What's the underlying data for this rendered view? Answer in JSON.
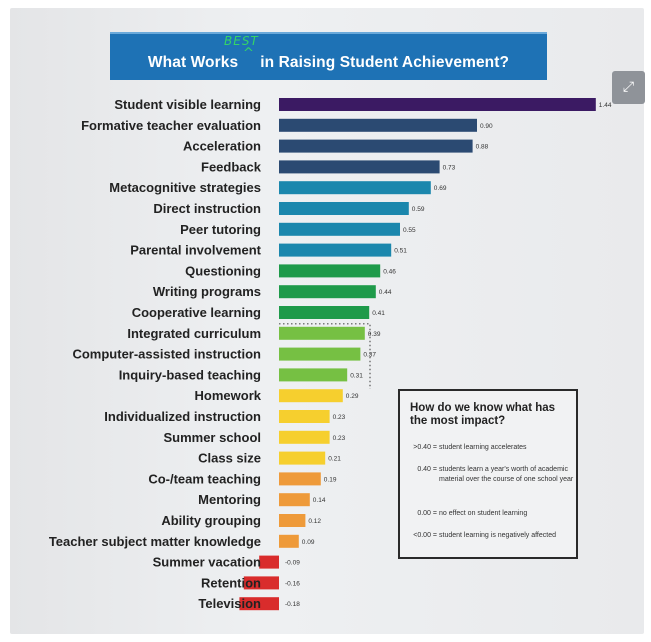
{
  "header": {
    "title": "What Works     in Raising Student Achievement?",
    "annotation": "BEST",
    "caret": "^"
  },
  "expand_icon": "⤢",
  "legend": {
    "title": "How do we know what has the most impact?",
    "rows": [
      {
        "key": ">0.40 =",
        "text": "student learning accelerates"
      },
      {
        "key": "0.40 =",
        "text": "students learn a year's worth of academic material over the course of one school year"
      },
      {
        "key": "0.00 =",
        "text": "no effect on student learning"
      },
      {
        "key": "<0.00 =",
        "text": "student learning is negatively affected"
      }
    ]
  },
  "chart_data": {
    "type": "bar",
    "orientation": "horizontal",
    "title": "What Works in Raising Student Achievement?",
    "categories": [
      "Student visible learning",
      "Formative teacher evaluation",
      "Acceleration",
      "Feedback",
      "Metacognitive strategies",
      "Direct instruction",
      "Peer tutoring",
      "Parental involvement",
      "Questioning",
      "Writing programs",
      "Cooperative learning",
      "Integrated curriculum",
      "Computer-assisted instruction",
      "Inquiry-based teaching",
      "Homework",
      "Individualized instruction",
      "Summer school",
      "Class size",
      "Co-/team teaching",
      "Mentoring",
      "Ability grouping",
      "Teacher subject matter knowledge",
      "Summer vacation",
      "Retention",
      "Television"
    ],
    "values": [
      1.44,
      0.9,
      0.88,
      0.73,
      0.69,
      0.59,
      0.55,
      0.51,
      0.46,
      0.44,
      0.41,
      0.39,
      0.37,
      0.31,
      0.29,
      0.23,
      0.23,
      0.21,
      0.19,
      0.14,
      0.12,
      0.09,
      -0.09,
      -0.16,
      -0.18
    ],
    "value_labels": [
      "1.44",
      "0.90",
      "0.88",
      "0.73",
      "0.69",
      "0.59",
      "0.55",
      "0.51",
      "0.46",
      "0.44",
      "0.41",
      "0.39",
      "0.37",
      "0.31",
      "0.29",
      "0.23",
      "0.23",
      "0.21",
      "0.19",
      "0.14",
      "0.12",
      "0.09",
      "-0.09",
      "-0.16",
      "-0.18"
    ],
    "colors": [
      "#3b1a63",
      "#2b4a72",
      "#2b4a72",
      "#2b4a72",
      "#1b87ad",
      "#1b87ad",
      "#1b87ad",
      "#1b87ad",
      "#1e9a4a",
      "#1e9a4a",
      "#1e9a4a",
      "#76c043",
      "#76c043",
      "#76c043",
      "#f6cf2e",
      "#f6cf2e",
      "#f6cf2e",
      "#f6cf2e",
      "#ee9a3a",
      "#ee9a3a",
      "#ee9a3a",
      "#ee9a3a",
      "#d92c2c",
      "#d92c2c",
      "#d92c2c"
    ],
    "threshold": 0.4
  }
}
